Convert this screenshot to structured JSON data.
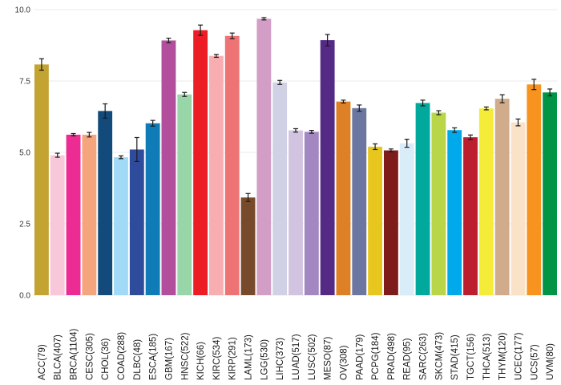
{
  "chart_data": {
    "type": "bar",
    "title": "",
    "xlabel": "",
    "ylabel": "",
    "ylim": [
      0,
      10
    ],
    "yticks": [
      0,
      2.5,
      5,
      7.5,
      10
    ],
    "ytick_labels": [
      "0.0",
      "2.5",
      "5.0",
      "7.5",
      "10.0"
    ],
    "grid": true,
    "categories": [
      "ACC(79)",
      "BLCA(407)",
      "BRCA(1104)",
      "CESC(305)",
      "CHOL(36)",
      "COAD(288)",
      "DLBC(48)",
      "ESCA(185)",
      "GBM(167)",
      "HNSC(522)",
      "KICH(66)",
      "KIRC(534)",
      "KIRP(291)",
      "LAML(173)",
      "LGG(530)",
      "LIHC(373)",
      "LUAD(517)",
      "LUSC(502)",
      "MESO(87)",
      "OV(308)",
      "PAAD(179)",
      "PCPG(184)",
      "PRAD(498)",
      "READ(95)",
      "SARC(263)",
      "SKCM(473)",
      "STAD(415)",
      "TGCT(156)",
      "THCA(513)",
      "THYM(120)",
      "UCEC(177)",
      "UCS(57)",
      "UVM(80)"
    ],
    "values": [
      8.08,
      4.9,
      5.62,
      5.62,
      6.45,
      4.83,
      5.1,
      6.02,
      8.92,
      7.03,
      9.28,
      8.38,
      9.08,
      3.42,
      9.68,
      7.45,
      5.77,
      5.72,
      8.93,
      6.78,
      6.55,
      5.2,
      5.07,
      5.32,
      6.73,
      6.39,
      5.78,
      5.53,
      6.54,
      6.88,
      6.05,
      7.38,
      7.1
    ],
    "errors": [
      0.2,
      0.07,
      0.04,
      0.08,
      0.25,
      0.05,
      0.42,
      0.1,
      0.08,
      0.07,
      0.18,
      0.05,
      0.1,
      0.14,
      0.04,
      0.07,
      0.06,
      0.05,
      0.2,
      0.05,
      0.11,
      0.1,
      0.05,
      0.14,
      0.1,
      0.07,
      0.08,
      0.08,
      0.05,
      0.14,
      0.12,
      0.18,
      0.12
    ],
    "colors": [
      "#C3A332",
      "#F8C8DA",
      "#EC2C92",
      "#F5A57D",
      "#134A7C",
      "#A0DAF6",
      "#2F4C9C",
      "#0F7CB7",
      "#B24E9C",
      "#98D5A9",
      "#ED1D25",
      "#F8AEB1",
      "#EE7374",
      "#784A2C",
      "#D39EC6",
      "#D0D1E5",
      "#D2C4E0",
      "#A287C1",
      "#552A85",
      "#DE8025",
      "#6B77A0",
      "#E7C71E",
      "#7E1B1B",
      "#D8EDF8",
      "#00A99C",
      "#B9D648",
      "#00A9E9",
      "#BC1E2E",
      "#F5EB39",
      "#D1AC8C",
      "#FAE2C8",
      "#F7931E",
      "#009447"
    ]
  }
}
